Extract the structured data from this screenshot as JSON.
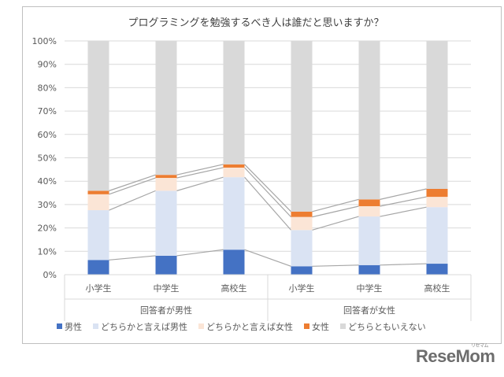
{
  "chart_data": {
    "type": "bar",
    "stacked": true,
    "title": "プログラミングを勉強するべき人は誰だと思いますか？",
    "categories": [
      "小学生",
      "中学生",
      "高校生",
      "小学生",
      "中学生",
      "高校生"
    ],
    "groups": [
      {
        "label": "回答者が男性",
        "span": 3
      },
      {
        "label": "回答者が女性",
        "span": 3
      }
    ],
    "ylim": [
      0,
      100
    ],
    "yticks": [
      "0%",
      "10%",
      "20%",
      "30%",
      "40%",
      "50%",
      "60%",
      "70%",
      "80%",
      "90%",
      "100%"
    ],
    "grid": true,
    "legend_position": "bottom",
    "series": [
      {
        "name": "男性",
        "color": "#4472c4",
        "values": [
          6.3,
          8.1,
          10.7,
          3.6,
          4.1,
          4.7
        ]
      },
      {
        "name": "どちらかと言えば男性",
        "color": "#dae3f3",
        "values": [
          21.3,
          27.8,
          31.0,
          15.5,
          20.8,
          24.2
        ]
      },
      {
        "name": "どちらかと言えば女性",
        "color": "#fbe5d6",
        "values": [
          6.8,
          5.5,
          4.1,
          5.6,
          4.4,
          4.4
        ]
      },
      {
        "name": "女性",
        "color": "#ed7d31",
        "values": [
          1.5,
          1.3,
          1.4,
          2.3,
          2.9,
          3.4
        ]
      },
      {
        "name": "どちらともいえない",
        "color": "#d9d9d9",
        "values": [
          64.1,
          57.3,
          52.8,
          73.0,
          67.8,
          63.3
        ]
      }
    ]
  },
  "watermark": {
    "brand": "ReseMom",
    "sub": "リセマム"
  }
}
